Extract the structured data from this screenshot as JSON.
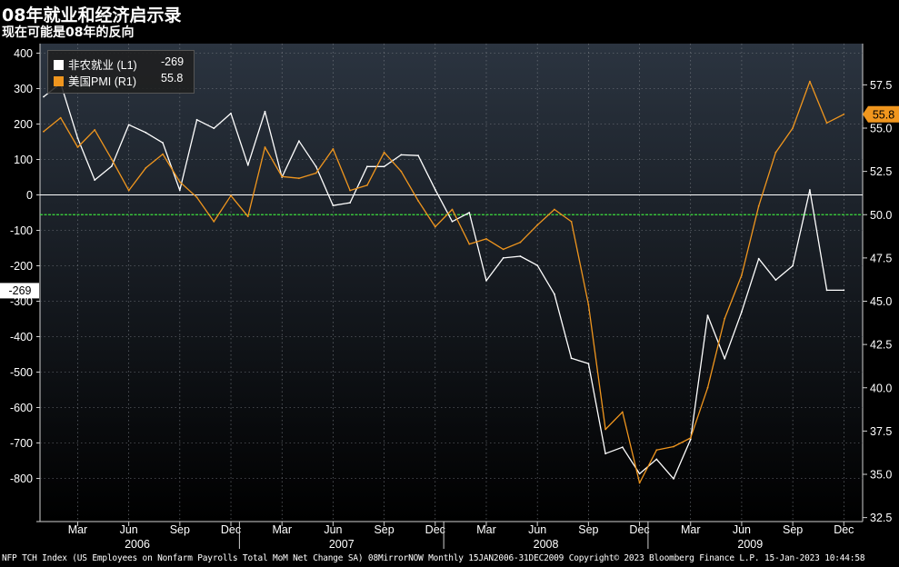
{
  "title": "08年就业和经济启示录",
  "subtitle": "现在可能是08年的反向",
  "footer": "NFP TCH Index (US Employees on Nonfarm Payrolls Total MoM Net Change SA) 08MirrorNOW  Monthly 15JAN2006-31DEC2009  Copyright© 2023 Bloomberg Finance L.P.  15-Jan-2023 10:44:58",
  "colors": {
    "background_top": "#2b3440",
    "background_bottom": "#000000",
    "nfp": "#ffffff",
    "pmi": "#f0961e",
    "zero_line": "#ffffff",
    "reference_line": "#3ee03e"
  },
  "legend": [
    {
      "name": "非农就业 (L1)",
      "value": "-269",
      "color": "#ffffff"
    },
    {
      "name": "美国PMI (R1)",
      "value": "55.8",
      "color": "#f0961e"
    }
  ],
  "chart_data": {
    "type": "line",
    "x_label_months": [
      "Mar",
      "Jun",
      "Sep",
      "Dec",
      "Mar",
      "Jun",
      "Sep",
      "Dec",
      "Mar",
      "Jun",
      "Sep",
      "Dec",
      "Mar",
      "Jun",
      "Sep",
      "Dec"
    ],
    "x_label_years": [
      "2006",
      "2007",
      "2008",
      "2009"
    ],
    "x": [
      "2006-01",
      "2006-02",
      "2006-03",
      "2006-04",
      "2006-05",
      "2006-06",
      "2006-07",
      "2006-08",
      "2006-09",
      "2006-10",
      "2006-11",
      "2006-12",
      "2007-01",
      "2007-02",
      "2007-03",
      "2007-04",
      "2007-05",
      "2007-06",
      "2007-07",
      "2007-08",
      "2007-09",
      "2007-10",
      "2007-11",
      "2007-12",
      "2008-01",
      "2008-02",
      "2008-03",
      "2008-04",
      "2008-05",
      "2008-06",
      "2008-07",
      "2008-08",
      "2008-09",
      "2008-10",
      "2008-11",
      "2008-12",
      "2009-01",
      "2009-02",
      "2009-03",
      "2009-04",
      "2009-05",
      "2009-06",
      "2009-07",
      "2009-08",
      "2009-09",
      "2009-10",
      "2009-11",
      "2009-12"
    ],
    "left_axis": {
      "ticks": [
        400,
        300,
        200,
        100,
        0,
        -100,
        -200,
        -300,
        -400,
        -500,
        -600,
        -700,
        -800
      ],
      "range": [
        -900,
        430
      ]
    },
    "right_axis": {
      "ticks": [
        57.5,
        55.0,
        52.5,
        50.0,
        47.5,
        45.0,
        42.5,
        40.0,
        37.5,
        35.0,
        32.5
      ],
      "range": [
        32.0,
        59.0
      ]
    },
    "series": [
      {
        "name": "非农就业 (L1)",
        "axis": "left",
        "last_value_label": "-269",
        "values": [
          277,
          315,
          160,
          42,
          81,
          198,
          176,
          147,
          13,
          212,
          188,
          230,
          84,
          235,
          50,
          152,
          80,
          -30,
          -22,
          80,
          80,
          113,
          111,
          15,
          -75,
          -50,
          -242,
          -178,
          -173,
          -199,
          -280,
          -461,
          -476,
          -730,
          -712,
          -787,
          -746,
          -801,
          -690,
          -340,
          -462,
          -330,
          -180,
          -240,
          -200,
          14,
          -269,
          -269
        ]
      },
      {
        "name": "美国PMI (R1)",
        "axis": "right",
        "last_value_label": "55.8",
        "values": [
          54.8,
          55.6,
          53.9,
          54.9,
          53.2,
          51.4,
          52.7,
          53.5,
          51.9,
          51.0,
          49.6,
          51.1,
          49.9,
          53.9,
          52.2,
          52.1,
          52.4,
          53.8,
          51.4,
          51.7,
          53.6,
          52.5,
          50.8,
          49.3,
          50.3,
          48.3,
          48.6,
          48.0,
          48.4,
          49.4,
          50.3,
          49.6,
          44.8,
          37.6,
          38.6,
          34.5,
          36.4,
          36.6,
          37.1,
          40.0,
          44.0,
          46.5,
          50.5,
          53.6,
          55.0,
          57.7,
          55.3,
          55.8
        ]
      }
    ],
    "reference_lines": [
      {
        "axis": "right",
        "value": 50.0
      },
      {
        "axis": "left",
        "value": 0
      }
    ]
  }
}
